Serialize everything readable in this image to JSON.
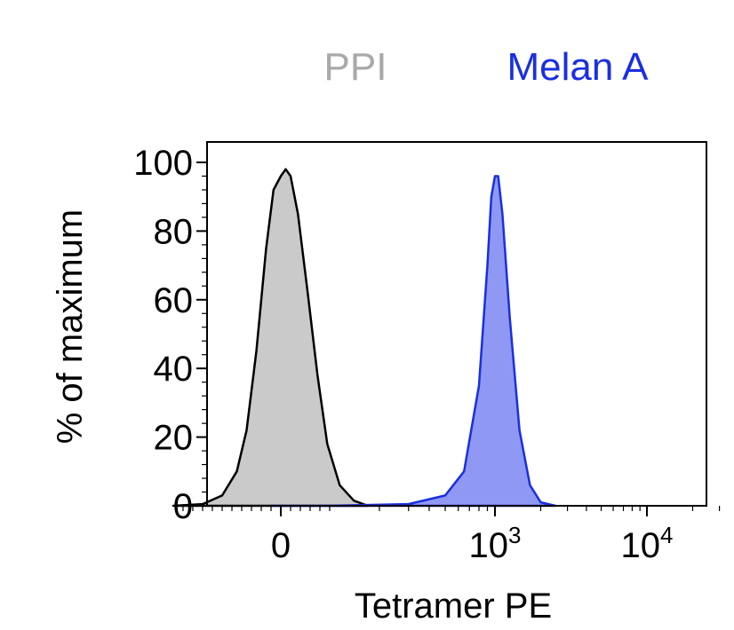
{
  "chart_data": {
    "type": "area",
    "xlabel": "Tetramer PE",
    "ylabel": "% of maximum",
    "ylim": [
      0,
      100
    ],
    "x_scale": "biexponential",
    "y_ticks": [
      "0",
      "20",
      "40",
      "60",
      "80",
      "100"
    ],
    "x_ticks": [
      {
        "label": "0",
        "base": "0",
        "exp": ""
      },
      {
        "label": "10^3",
        "base": "10",
        "exp": "3"
      },
      {
        "label": "10^4",
        "base": "10",
        "exp": "4"
      }
    ],
    "legend": {
      "placement": "top"
    },
    "series": [
      {
        "name": "PPI",
        "color": "#a9a9a9",
        "fill": "#cacaca",
        "stroke": "#000000",
        "points": [
          [
            -220,
            0
          ],
          [
            -160,
            0.5
          ],
          [
            -120,
            3
          ],
          [
            -90,
            10
          ],
          [
            -70,
            22
          ],
          [
            -50,
            45
          ],
          [
            -30,
            75
          ],
          [
            -15,
            92
          ],
          [
            0,
            96
          ],
          [
            10,
            98
          ],
          [
            20,
            96
          ],
          [
            35,
            85
          ],
          [
            55,
            62
          ],
          [
            75,
            38
          ],
          [
            95,
            18
          ],
          [
            115,
            6
          ],
          [
            140,
            1.5
          ],
          [
            170,
            0
          ]
        ]
      },
      {
        "name": "Melan A",
        "color": "#1a2fe0",
        "fill": "#8f99f3",
        "stroke": "#1a2fe0",
        "points": [
          [
            -20,
            0
          ],
          [
            100,
            0
          ],
          [
            300,
            0.5
          ],
          [
            500,
            3
          ],
          [
            650,
            10
          ],
          [
            800,
            35
          ],
          [
            900,
            70
          ],
          [
            950,
            90
          ],
          [
            1000,
            96
          ],
          [
            1050,
            96
          ],
          [
            1120,
            85
          ],
          [
            1250,
            55
          ],
          [
            1450,
            22
          ],
          [
            1700,
            6
          ],
          [
            2000,
            1
          ],
          [
            2500,
            0
          ]
        ]
      }
    ]
  }
}
